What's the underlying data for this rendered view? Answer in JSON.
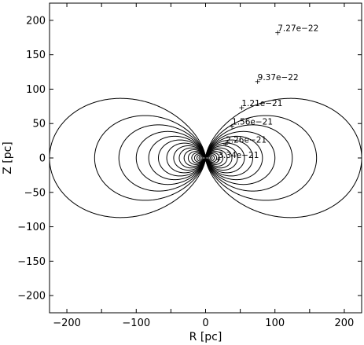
{
  "chart_data": {
    "type": "line",
    "title": "",
    "xlabel": "R [pc]",
    "ylabel": "Z [pc]",
    "xlim": [
      -225,
      225
    ],
    "ylim": [
      -225,
      225
    ],
    "grid": false,
    "legend": "none",
    "x_ticks": [
      -200,
      -150,
      -100,
      -50,
      0,
      50,
      100,
      150,
      200
    ],
    "x_tick_labels": [
      "−200",
      "",
      "−100",
      "",
      "0",
      "",
      "100",
      "",
      "200"
    ],
    "y_ticks": [
      -200,
      -150,
      -100,
      -50,
      0,
      50,
      100,
      150,
      200
    ],
    "y_tick_labels": [
      "−200",
      "−150",
      "−100",
      "−50",
      "0",
      "50",
      "100",
      "150",
      "200"
    ],
    "contours": {
      "description": "dipole-like closed field lines, Z^2 = (R0^(2/3) R^(4/3) - R^2), mirrored in R and Z",
      "equatorial_radii": [
        225,
        160,
        125,
        100,
        82,
        68,
        56,
        46,
        38,
        31,
        25,
        20,
        16,
        12.5,
        9.5,
        7,
        5,
        3
      ]
    },
    "annotations": [
      {
        "text": "7.27e−22",
        "x": 104,
        "y": 182
      },
      {
        "text": "9.37e−22",
        "x": 75,
        "y": 111
      },
      {
        "text": "1.21e−21",
        "x": 52,
        "y": 73
      },
      {
        "text": "1.56e−21",
        "x": 38,
        "y": 46
      },
      {
        "text": "2.26e−21",
        "x": 29,
        "y": 20
      },
      {
        "text": "3.34e−21",
        "x": 18,
        "y": -2
      }
    ]
  }
}
